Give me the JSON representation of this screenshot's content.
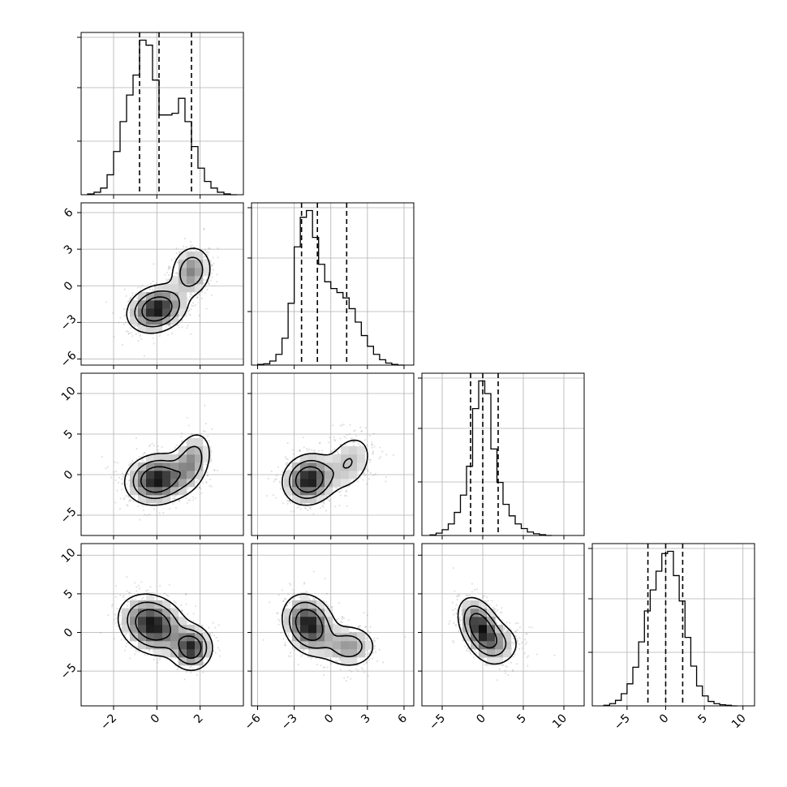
{
  "chart_data": {
    "type": "corner",
    "parameters": [
      {
        "ticks": [
          "−2",
          "0",
          "2"
        ],
        "tick_values": [
          -2,
          0,
          2
        ],
        "range": [
          -3.5,
          4.0
        ],
        "quantiles": [
          -0.8,
          0.1,
          1.6
        ],
        "hist_bins": [
          -3.2,
          -2.9,
          -2.6,
          -2.3,
          -2.0,
          -1.7,
          -1.4,
          -1.1,
          -0.8,
          -0.5,
          -0.2,
          0.1,
          0.4,
          0.7,
          1.0,
          1.3,
          1.6,
          1.9,
          2.2,
          2.5,
          2.8,
          3.1,
          3.4,
          3.7
        ],
        "hist_counts": [
          0.5,
          1.5,
          4,
          12,
          26,
          44,
          60,
          72,
          93,
          90,
          69,
          48,
          48,
          49,
          58,
          44,
          29,
          16,
          8,
          4,
          1.5,
          0.5,
          0
        ]
      },
      {
        "ticks": [
          "−6",
          "−3",
          "0",
          "3",
          "6"
        ],
        "tick_values": [
          -6,
          -3,
          0,
          3,
          6
        ],
        "range": [
          -6.5,
          6.8
        ],
        "quantiles": [
          -2.4,
          -1.1,
          1.3
        ],
        "hist_bins": [
          -6.0,
          -5.5,
          -5.0,
          -4.5,
          -4.0,
          -3.5,
          -3.0,
          -2.5,
          -2.0,
          -1.5,
          -1.0,
          -0.5,
          0.0,
          0.5,
          1.0,
          1.5,
          2.0,
          2.5,
          3.0,
          3.5,
          4.0,
          4.5,
          5.0,
          5.5,
          6.0
        ],
        "hist_counts": [
          0.5,
          1,
          3,
          8,
          20,
          46,
          88,
          110,
          115,
          95,
          75,
          62,
          57,
          54,
          50,
          42,
          32,
          22,
          14,
          8,
          4,
          1.5,
          0.5,
          0
        ]
      },
      {
        "ticks": [
          "−5",
          "0",
          "5",
          "10"
        ],
        "tick_values": [
          -5,
          0,
          5,
          10
        ],
        "range": [
          -7.5,
          12.5
        ],
        "quantiles": [
          -1.5,
          0.0,
          1.9
        ],
        "hist_bins": [
          -6.5,
          -5.75,
          -5.0,
          -4.25,
          -3.5,
          -2.75,
          -2.0,
          -1.25,
          -0.5,
          0.25,
          1.0,
          1.75,
          2.5,
          3.25,
          4.0,
          4.75,
          5.5,
          6.25,
          7.0,
          7.75,
          8.5
        ],
        "hist_counts": [
          0.5,
          2,
          5,
          10,
          20,
          35,
          60,
          110,
          134,
          123,
          75,
          46,
          27,
          17,
          10,
          6,
          3,
          1.5,
          0.7,
          0
        ]
      },
      {
        "ticks": [
          "−5",
          "0",
          "5",
          "10"
        ],
        "tick_values": [
          -5,
          0,
          5,
          10
        ],
        "range": [
          -9.5,
          11.5
        ],
        "quantiles": [
          -2.3,
          0.0,
          2.2
        ],
        "hist_bins": [
          -8.0,
          -7.25,
          -6.5,
          -5.75,
          -5.0,
          -4.25,
          -3.5,
          -2.75,
          -2.0,
          -1.25,
          -0.5,
          0.25,
          1.0,
          1.75,
          2.5,
          3.25,
          4.0,
          4.75,
          5.5,
          6.25,
          7.0,
          7.75,
          8.5,
          9.25
        ],
        "hist_counts": [
          0.5,
          2,
          5,
          11,
          20,
          35,
          58,
          86,
          105,
          122,
          138,
          140,
          118,
          95,
          62,
          36,
          18,
          9,
          4,
          2,
          1,
          0.5,
          0
        ]
      }
    ],
    "pairs": [
      {
        "x": 0,
        "y": 1,
        "modes": [
          {
            "mx": 0.0,
            "my": -1.9,
            "sx": 0.7,
            "sy": 1.0,
            "rho": 0.2,
            "w": 0.68
          },
          {
            "mx": 1.6,
            "my": 1.2,
            "sx": 0.5,
            "sy": 1.1,
            "rho": 0.1,
            "w": 0.32
          }
        ]
      },
      {
        "x": 0,
        "y": 2,
        "modes": [
          {
            "mx": 0.0,
            "my": -0.6,
            "sx": 0.75,
            "sy": 1.6,
            "rho": 0.1,
            "w": 0.7
          },
          {
            "mx": 1.6,
            "my": 1.6,
            "sx": 0.5,
            "sy": 2.0,
            "rho": 0.3,
            "w": 0.3
          }
        ]
      },
      {
        "x": 1,
        "y": 2,
        "modes": [
          {
            "mx": -1.8,
            "my": -0.6,
            "sx": 1.1,
            "sy": 1.6,
            "rho": 0.1,
            "w": 0.7
          },
          {
            "mx": 1.5,
            "my": 1.5,
            "sx": 1.1,
            "sy": 2.0,
            "rho": 0.3,
            "w": 0.3
          }
        ]
      },
      {
        "x": 0,
        "y": 3,
        "modes": [
          {
            "mx": -0.2,
            "my": 1.0,
            "sx": 0.8,
            "sy": 2.0,
            "rho": -0.2,
            "w": 0.7
          },
          {
            "mx": 1.6,
            "my": -2.0,
            "sx": 0.5,
            "sy": 1.5,
            "rho": 0.0,
            "w": 0.3
          }
        ]
      },
      {
        "x": 1,
        "y": 3,
        "modes": [
          {
            "mx": -1.8,
            "my": 1.0,
            "sx": 1.1,
            "sy": 2.0,
            "rho": -0.2,
            "w": 0.7
          },
          {
            "mx": 1.5,
            "my": -1.8,
            "sx": 1.2,
            "sy": 1.5,
            "rho": 0.0,
            "w": 0.3
          }
        ]
      },
      {
        "x": 2,
        "y": 3,
        "modes": [
          {
            "mx": -0.3,
            "my": 0.6,
            "sx": 1.4,
            "sy": 2.0,
            "rho": -0.4,
            "w": 0.75
          },
          {
            "mx": 2.0,
            "my": -1.5,
            "sx": 1.6,
            "sy": 1.6,
            "rho": 0.0,
            "w": 0.25
          }
        ]
      }
    ],
    "histogram_bins": 20,
    "quantile_levels": [
      0.16,
      0.5,
      0.84
    ],
    "contour_levels": 3,
    "grid": true,
    "title": "",
    "axis_labels": [
      "",
      "",
      "",
      ""
    ]
  }
}
